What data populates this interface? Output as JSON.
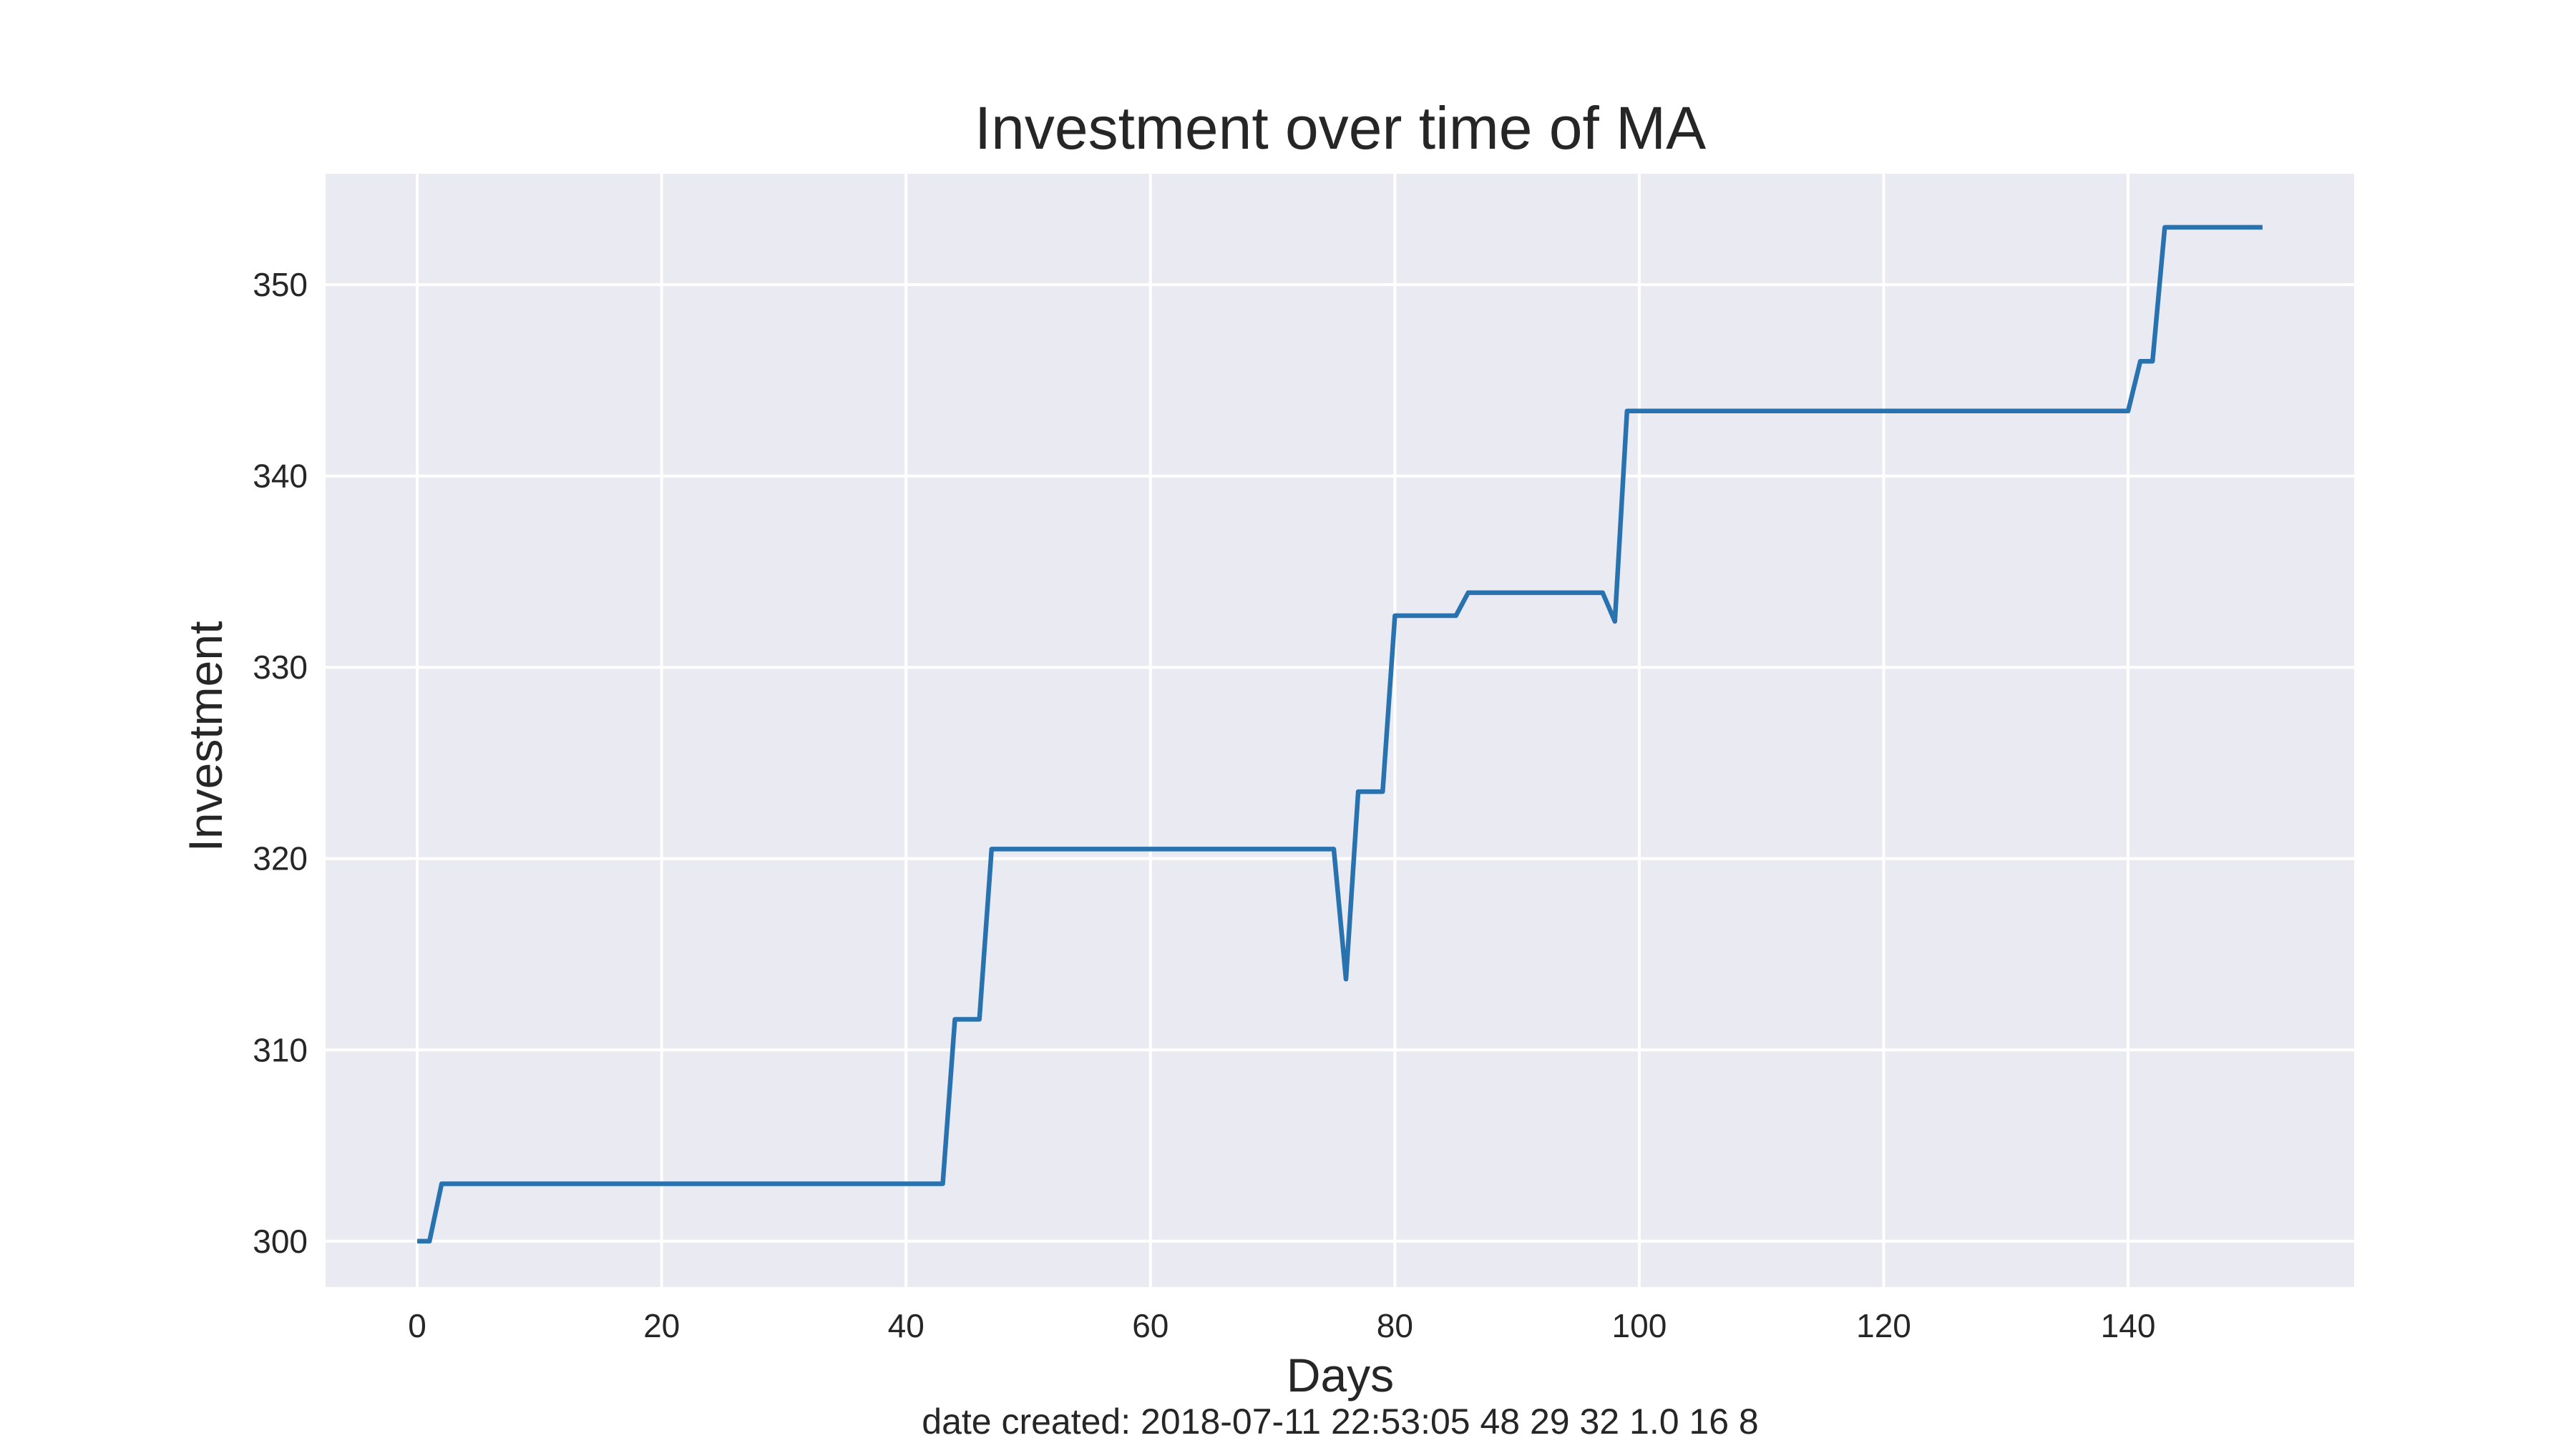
{
  "chart_data": {
    "type": "line",
    "title": "Investment over time of MA",
    "xlabel": "Days",
    "ylabel": "Investment",
    "xlim": [
      -7.5,
      158.5
    ],
    "ylim": [
      297.6,
      355.8
    ],
    "xticks": [
      0,
      20,
      40,
      60,
      80,
      100,
      120,
      140
    ],
    "yticks": [
      300,
      310,
      320,
      330,
      340,
      350
    ],
    "grid": true,
    "legend": "none",
    "colors": {
      "plot_background": "#eaeaf2",
      "grid": "#ffffff",
      "line": "#2872b0"
    },
    "series": [
      {
        "x": [
          0,
          1,
          2,
          10,
          20,
          30,
          40,
          43,
          44,
          45,
          46,
          47,
          50,
          60,
          70,
          75,
          76,
          77,
          78,
          79,
          80,
          85,
          86,
          90,
          95,
          97,
          98,
          99,
          100,
          110,
          120,
          130,
          140,
          141,
          142,
          143,
          145,
          150,
          151
        ],
        "y": [
          300,
          300,
          303,
          303,
          303,
          303,
          303,
          303,
          311.6,
          311.6,
          311.6,
          320.5,
          320.5,
          320.5,
          320.5,
          320.5,
          313.7,
          323.5,
          323.5,
          323.5,
          332.7,
          332.7,
          333.9,
          333.9,
          333.9,
          333.9,
          332.4,
          343.4,
          343.4,
          343.4,
          343.4,
          343.4,
          343.4,
          346,
          346,
          353,
          353,
          353,
          353
        ]
      }
    ]
  },
  "footer": {
    "text": "date created: 2018-07-11 22:53:05 48 29 32 1.0 16 8"
  }
}
